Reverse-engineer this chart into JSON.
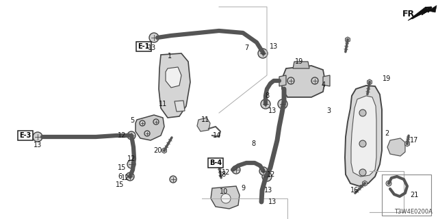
{
  "bg_color": "#ffffff",
  "diagram_code": "T3W4E0200A",
  "line_color": "#333333",
  "label_color": "#111111",
  "figsize": [
    6.4,
    3.2
  ],
  "dpi": 100
}
